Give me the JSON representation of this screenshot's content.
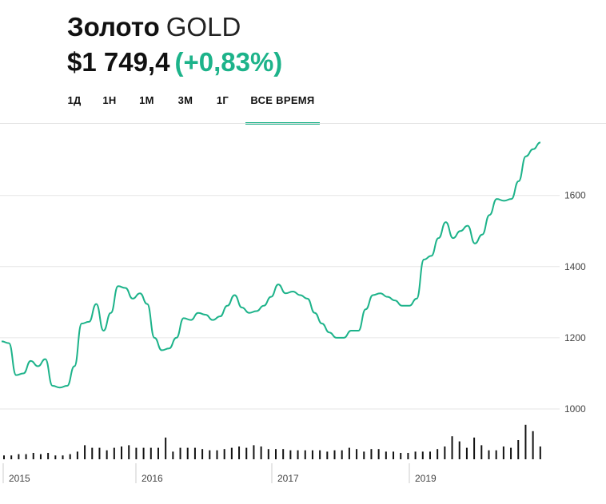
{
  "header": {
    "name": "Золото",
    "ticker": "GOLD",
    "price": "$1 749,4",
    "change": "(+0,83%)"
  },
  "tabs": [
    {
      "label": "1Д",
      "active": false
    },
    {
      "label": "1Н",
      "active": false
    },
    {
      "label": "1М",
      "active": false
    },
    {
      "label": "3М",
      "active": false
    },
    {
      "label": "1Г",
      "active": false
    },
    {
      "label": "ВСЕ ВРЕМЯ",
      "active": true
    }
  ],
  "colors": {
    "accent": "#1db38a",
    "line": "#1db38a",
    "volume": "#111111"
  },
  "chart_data": {
    "type": "line",
    "ylim": [
      900,
      1800
    ],
    "y_ticks": [
      1000,
      1200,
      1400,
      1600
    ],
    "x_tick_labels": [
      "2015",
      "2016",
      "2017",
      "2019"
    ],
    "x_tick_dates": [
      2015.0,
      2016.0,
      2017.0,
      2019.0
    ],
    "xlim": [
      2015.0,
      2020.65
    ],
    "grid": true,
    "series": [
      {
        "x": [
          2015.0,
          2015.05,
          2015.1,
          2015.15,
          2015.2,
          2015.25,
          2015.3,
          2015.35,
          2015.4,
          2015.45,
          2015.5,
          2015.55,
          2015.6,
          2015.65,
          2015.7,
          2015.75,
          2015.8,
          2015.85,
          2015.9,
          2015.95,
          2016.0,
          2016.05,
          2016.1,
          2016.15,
          2016.2,
          2016.25,
          2016.3,
          2016.35,
          2016.4,
          2016.45,
          2016.5,
          2016.55,
          2016.6,
          2016.65,
          2016.7,
          2016.75,
          2016.8,
          2016.85,
          2016.9,
          2016.95,
          2017.0,
          2017.05,
          2017.1,
          2017.15,
          2017.2,
          2017.25,
          2017.3,
          2017.35,
          2017.4,
          2017.45,
          2017.5,
          2017.55,
          2017.6,
          2017.65,
          2017.7,
          2017.75,
          2017.8,
          2017.85,
          2017.9,
          2017.95,
          2018.0,
          2018.05,
          2018.1,
          2018.15,
          2018.2,
          2018.25,
          2018.3,
          2018.35,
          2018.4,
          2018.45,
          2018.5,
          2018.55,
          2018.6,
          2018.65,
          2018.7,
          2018.75,
          2018.8,
          2018.85,
          2018.9,
          2018.95,
          2019.0,
          2019.05,
          2019.1,
          2019.15,
          2019.2,
          2019.25,
          2019.3,
          2019.35,
          2019.4,
          2019.45,
          2019.5,
          2019.55,
          2019.6,
          2019.65,
          2019.7,
          2019.75,
          2019.8,
          2019.85,
          2019.9,
          2019.95,
          2020.0,
          2020.05,
          2020.1,
          2020.15,
          2020.2,
          2020.25,
          2020.3,
          2020.35,
          2020.4,
          2020.45,
          2020.5,
          2020.55,
          2020.6
        ],
        "values": [
          1190,
          1185,
          1095,
          1100,
          1135,
          1120,
          1140,
          1065,
          1060,
          1065,
          1120,
          1240,
          1245,
          1295,
          1220,
          1270,
          1345,
          1340,
          1310,
          1325,
          1295,
          1200,
          1165,
          1170,
          1200,
          1255,
          1250,
          1270,
          1265,
          1250,
          1260,
          1290,
          1320,
          1285,
          1270,
          1275,
          1290,
          1315,
          1350,
          1325,
          1330,
          1320,
          1310,
          1270,
          1240,
          1215,
          1200,
          1200,
          1220,
          1220,
          1280,
          1320,
          1325,
          1315,
          1305,
          1290,
          1290,
          1310,
          1420,
          1430,
          1480,
          1525,
          1480,
          1500,
          1515,
          1465,
          1490,
          1545,
          1590,
          1585,
          1590,
          1640,
          1710,
          1730,
          1749,
          1749,
          1749,
          1749,
          1749,
          1749,
          1749,
          1749,
          1749,
          1749,
          1749,
          1749,
          1749,
          1749,
          1749,
          1749,
          1749,
          1749,
          1749,
          1749,
          1749,
          1749,
          1749,
          1749,
          1749,
          1749,
          1749,
          1749,
          1749,
          1749,
          1749,
          1749,
          1749,
          1749,
          1749,
          1749,
          1749,
          1749,
          1749
        ]
      }
    ],
    "volume": [
      3,
      3,
      4,
      4,
      5,
      4,
      5,
      3,
      3,
      4,
      6,
      11,
      9,
      9,
      7,
      9,
      10,
      11,
      9,
      9,
      9,
      9,
      17,
      6,
      9,
      9,
      9,
      8,
      7,
      7,
      8,
      9,
      10,
      9,
      11,
      10,
      8,
      8,
      8,
      7,
      7,
      7,
      7,
      7,
      6,
      7,
      7,
      9,
      8,
      6,
      8,
      8,
      6,
      6,
      5,
      5,
      6,
      6,
      6,
      8,
      10,
      18,
      14,
      9,
      17,
      11,
      7,
      7,
      10,
      9,
      15,
      27,
      22,
      10
    ]
  }
}
